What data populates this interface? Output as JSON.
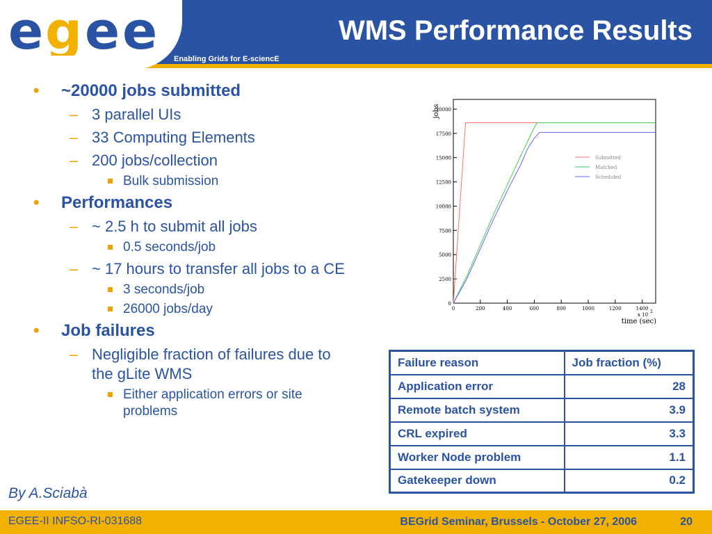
{
  "header": {
    "logo_text": "egee",
    "tagline": "Enabling Grids for E-sciencE",
    "title": "WMS Performance Results"
  },
  "bullets": [
    {
      "level": 1,
      "text": "~20000 jobs submitted"
    },
    {
      "level": 2,
      "text": "3 parallel UIs"
    },
    {
      "level": 2,
      "text": "33 Computing Elements"
    },
    {
      "level": 2,
      "text": "200 jobs/collection"
    },
    {
      "level": 3,
      "text": "Bulk submission"
    },
    {
      "level": 1,
      "text": "Performances"
    },
    {
      "level": 2,
      "text": "~ 2.5 h to submit all jobs"
    },
    {
      "level": 3,
      "text": "0.5 seconds/job"
    },
    {
      "level": 2,
      "text": "~ 17 hours to transfer all jobs to a CE"
    },
    {
      "level": 3,
      "text": "3 seconds/job"
    },
    {
      "level": 3,
      "text": "26000 jobs/day"
    },
    {
      "level": 1,
      "text": "Job failures"
    },
    {
      "level": 2,
      "text": "Negligible fraction of failures due to the gLite WMS"
    },
    {
      "level": 3,
      "text": "Either application errors or site problems"
    }
  ],
  "author": "By A.Sciabà",
  "chart_data": {
    "type": "line",
    "xlabel": "time (sec)",
    "ylabel": "jobs",
    "x_multiplier_label": "x 10",
    "x_multiplier_exp": "2",
    "xlim": [
      0,
      1500
    ],
    "ylim": [
      0,
      21000
    ],
    "x_ticks": [
      0,
      200,
      400,
      600,
      800,
      1000,
      1200,
      1400
    ],
    "y_ticks": [
      0,
      2500,
      5000,
      7500,
      10000,
      12500,
      15000,
      17500,
      20000
    ],
    "legend": "right",
    "series": [
      {
        "name": "Submitted",
        "color": "#ff6b6b",
        "points": [
          [
            0,
            0
          ],
          [
            90,
            18600
          ],
          [
            1500,
            18600
          ]
        ]
      },
      {
        "name": "Matched",
        "color": "#3fcf4f",
        "points": [
          [
            0,
            0
          ],
          [
            100,
            2800
          ],
          [
            200,
            6000
          ],
          [
            300,
            9200
          ],
          [
            400,
            12200
          ],
          [
            500,
            15200
          ],
          [
            600,
            18100
          ],
          [
            620,
            18600
          ],
          [
            1500,
            18600
          ]
        ]
      },
      {
        "name": "Scheduled",
        "color": "#6464ff",
        "points": [
          [
            0,
            0
          ],
          [
            100,
            2500
          ],
          [
            200,
            5600
          ],
          [
            300,
            8700
          ],
          [
            400,
            11600
          ],
          [
            500,
            14300
          ],
          [
            550,
            15900
          ],
          [
            600,
            17000
          ],
          [
            640,
            17600
          ],
          [
            1500,
            17600
          ]
        ]
      }
    ]
  },
  "table": {
    "headers": [
      "Failure reason",
      "Job fraction (%)"
    ],
    "rows": [
      [
        "Application error",
        "28"
      ],
      [
        "Remote batch system",
        "3.9"
      ],
      [
        "CRL expired",
        "3.3"
      ],
      [
        "Worker Node problem",
        "1.1"
      ],
      [
        "Gatekeeper down",
        "0.2"
      ]
    ]
  },
  "footer": {
    "left": "EGEE-II INFSO-RI-031688",
    "right": "BEGrid Seminar, Brussels - October 27, 2006",
    "page": "20"
  },
  "colors": {
    "brand_blue": "#2a53a4",
    "brand_yellow": "#f2b100",
    "bullet_orange": "#f2a000"
  }
}
